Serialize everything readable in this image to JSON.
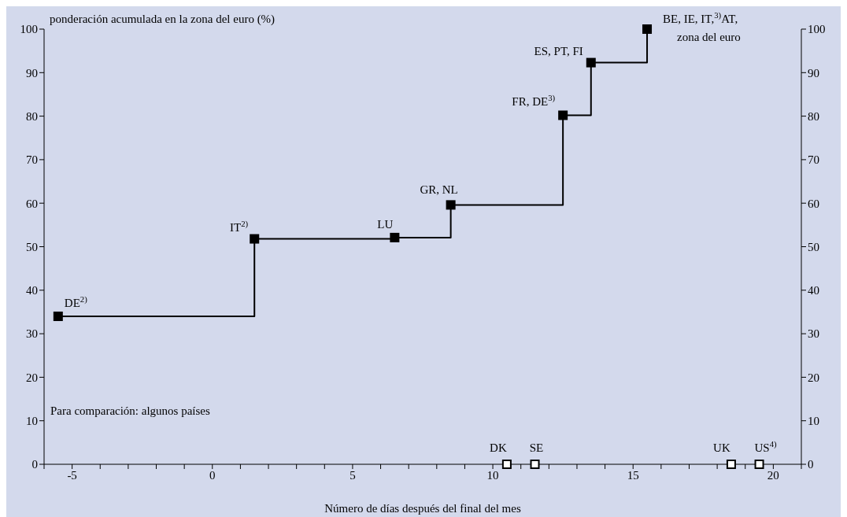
{
  "chart_data": {
    "type": "step",
    "ylabel": "ponderación acumulada en la zona del euro (%)",
    "xlabel": "Número de días después del final del mes",
    "series": [
      {
        "color": "#000000",
        "x": [
          -5.5,
          1.5,
          6.5,
          8.5,
          12.5,
          13.5,
          15.5
        ],
        "values": [
          34,
          51.8,
          52.1,
          59.6,
          80.2,
          92.3,
          100
        ],
        "marker": "square"
      },
      {
        "type": "scatter",
        "color": "#000000",
        "x": [
          10.5,
          11.5,
          18.5,
          19.5
        ],
        "values": [
          0,
          0,
          0,
          0
        ],
        "marker": "square"
      }
    ],
    "xlim": [
      -6,
      21
    ],
    "xticks": [
      {
        "value": -6,
        "label": null
      },
      -5,
      {
        "value": -4,
        "label": null
      },
      {
        "value": -3,
        "label": null
      },
      {
        "value": -2,
        "label": null
      },
      {
        "value": -1,
        "label": null
      },
      0,
      {
        "value": 1,
        "label": null
      },
      {
        "value": 2,
        "label": null
      },
      {
        "value": 3,
        "label": null
      },
      {
        "value": 4,
        "label": null
      },
      5,
      {
        "value": 6,
        "label": null
      },
      {
        "value": 7,
        "label": null
      },
      {
        "value": 8,
        "label": null
      },
      {
        "value": 9,
        "label": null
      },
      10,
      {
        "value": 11,
        "label": null
      },
      {
        "value": 12,
        "label": null
      },
      {
        "value": 13,
        "label": null
      },
      {
        "value": 14,
        "label": null
      },
      15,
      {
        "value": 16,
        "label": null
      },
      {
        "value": 17,
        "label": null
      },
      {
        "value": 18,
        "label": null
      },
      {
        "value": 19,
        "label": null
      },
      20,
      {
        "value": 21,
        "label": null
      }
    ],
    "ylim": [
      0,
      100
    ],
    "yticks": [
      0,
      10,
      20,
      30,
      40,
      50,
      60,
      70,
      80,
      90,
      100
    ],
    "y2lim": [
      0,
      100
    ],
    "y2ticks": [
      0,
      10,
      20,
      30,
      40,
      50,
      60,
      70,
      80,
      90,
      100
    ],
    "annotations": [
      {
        "text": "DE$^{2)}$",
        "x": -5.5,
        "y": 34
      },
      {
        "text": "IT$^{2)}$",
        "x": 1.5,
        "y": 51.8
      },
      {
        "text": "LU",
        "x": 6.5,
        "y": 52.1
      },
      {
        "text": "GR, NL",
        "x": 8.5,
        "y": 59.6
      },
      {
        "text": "FR, DE$^{3)}$",
        "x": 12.5,
        "y": 80.2
      },
      {
        "text": "ES, PT, FI",
        "x": 13.5,
        "y": 92.3
      },
      {
        "text": "BE, IE, IT,$^{3)}$AT,\nzona del euro",
        "x": 15.5,
        "y": 100
      },
      {
        "text": "DK",
        "x": 10.5,
        "y": 0
      },
      {
        "text": "SE",
        "x": 11.5,
        "y": 0
      },
      {
        "text": "UK",
        "x": 18.5,
        "y": 0
      },
      {
        "text": "US$^{4)}$",
        "x": 19.5,
        "y": 0
      },
      "Para comparación: algunos países"
    ]
  }
}
